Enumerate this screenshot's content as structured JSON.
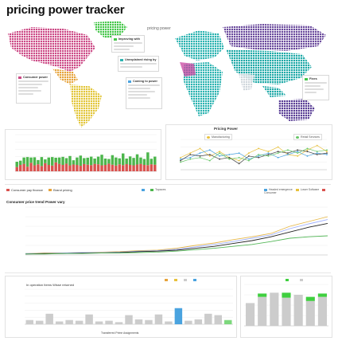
{
  "page": {
    "title": "pricing power tracker"
  },
  "map": {
    "label": "pricing power",
    "legend_na": "Consumer power",
    "legend_pacific": "Improving with",
    "legend_mid": "Unexplained rising by",
    "legend_sa": "Coming to power",
    "legend_asia": "Fixes",
    "colors": {
      "na": "#cc4a86",
      "greenland": "#45c64a",
      "europe": "#2bb3b0",
      "russia": "#6a4a9c",
      "asia": "#1fa9a7",
      "sa": "#e2c63a",
      "mexico": "#e6a33a",
      "australia": "#5a3f96",
      "ocean": "#ffffff"
    }
  },
  "pricing_panel": {
    "title": "Pricing Power",
    "tag1": "Manufacturing",
    "tag2": "Retail Services"
  },
  "legend_bar": {
    "left1": "Consumer pay finance",
    "left2": "Brand pricing",
    "mid1": "",
    "mid2": "Topaces",
    "right1": "Headed emergence",
    "right2": "Lower Software",
    "right3": "Consumer"
  },
  "line_chart": {
    "title": "Consumer price trend Power vary"
  },
  "bottom": {
    "title": "In operation Items Wisse returned",
    "xlabel": "Transferred Prime Assignments"
  },
  "chart_data": [
    {
      "type": "bar",
      "title": "",
      "stacked": true,
      "ylim": [
        0,
        100
      ],
      "series": [
        {
          "name": "",
          "color": "#d9534f",
          "values": [
            20,
            30,
            35,
            22,
            40,
            28,
            33,
            25,
            38,
            30,
            27,
            42,
            35,
            30,
            36,
            28,
            32,
            30,
            26,
            34,
            31,
            29,
            35,
            33,
            28,
            30,
            36,
            31,
            27,
            33,
            29,
            34,
            30,
            28,
            32,
            35,
            30,
            29,
            33,
            31
          ]
        },
        {
          "name": "",
          "color": "#4cb64c",
          "values": [
            25,
            20,
            30,
            45,
            25,
            38,
            20,
            42,
            18,
            35,
            40,
            22,
            30,
            38,
            26,
            44,
            20,
            35,
            48,
            28,
            33,
            40,
            25,
            36,
            50,
            30,
            22,
            45,
            38,
            28,
            55,
            26,
            40,
            35,
            48,
            30,
            28,
            60,
            26,
            38
          ]
        }
      ]
    },
    {
      "type": "line",
      "title": "Pricing Power",
      "ylim": [
        0,
        100
      ],
      "series": [
        {
          "name": "",
          "color": "#e8c13c",
          "values": [
            40,
            55,
            70,
            45,
            60,
            40,
            30,
            55,
            70,
            60,
            75,
            50,
            45,
            65,
            80,
            60
          ]
        },
        {
          "name": "",
          "color": "#4aa3df",
          "values": [
            35,
            40,
            55,
            65,
            45,
            50,
            55,
            35,
            45,
            55,
            40,
            50,
            60,
            45,
            55,
            50
          ]
        },
        {
          "name": "",
          "color": "#444444",
          "values": [
            30,
            50,
            45,
            50,
            35,
            40,
            20,
            45,
            40,
            50,
            60,
            55,
            65,
            60,
            50,
            55
          ]
        },
        {
          "name": "",
          "color": "#67c567",
          "values": [
            25,
            35,
            40,
            30,
            55,
            35,
            40,
            30,
            50,
            45,
            55,
            65,
            55,
            70,
            60,
            65
          ]
        }
      ]
    },
    {
      "type": "line",
      "title": "Consumer price trend Power vary",
      "ylim": [
        0,
        100
      ],
      "series": [
        {
          "name": "",
          "color": "#e6b84a",
          "values": [
            3,
            4,
            4,
            5,
            6,
            7,
            9,
            10,
            14,
            20,
            25,
            32,
            38,
            45,
            60,
            70,
            80
          ]
        },
        {
          "name": "",
          "color": "#9fb0ff",
          "values": [
            3,
            3,
            4,
            5,
            5,
            6,
            8,
            9,
            12,
            17,
            22,
            28,
            35,
            42,
            55,
            65,
            74
          ]
        },
        {
          "name": "",
          "color": "#222222",
          "values": [
            2,
            3,
            3,
            4,
            4,
            5,
            7,
            8,
            10,
            14,
            18,
            24,
            30,
            38,
            48,
            58,
            66
          ]
        },
        {
          "name": "",
          "color": "#56b85a",
          "values": [
            2,
            2,
            3,
            3,
            4,
            4,
            5,
            6,
            8,
            11,
            14,
            18,
            22,
            28,
            35,
            38,
            40
          ]
        }
      ]
    },
    {
      "type": "bar",
      "title": "In operation Items Wisse returned",
      "xlabel": "Transferred Prime Assignments",
      "ylim": [
        0,
        100
      ],
      "values": [
        12,
        10,
        30,
        8,
        12,
        10,
        28,
        8,
        10,
        6,
        26,
        14,
        12,
        28,
        8,
        46,
        10,
        14,
        30,
        26,
        12
      ],
      "colors": [
        "#cccccc",
        "#cccccc",
        "#cccccc",
        "#cccccc",
        "#cccccc",
        "#cccccc",
        "#cccccc",
        "#cccccc",
        "#cccccc",
        "#cccccc",
        "#cccccc",
        "#cccccc",
        "#cccccc",
        "#cccccc",
        "#cccccc",
        "#cccccc",
        "#cccccc",
        "#cccccc",
        "#cccccc",
        "#cccccc",
        "#7dd87d"
      ]
    },
    {
      "type": "bar",
      "title": "",
      "stacked": true,
      "ylim": [
        0,
        100
      ],
      "series": [
        {
          "name": "",
          "color": "#cccccc",
          "values": [
            55,
            70,
            80,
            68,
            75,
            60,
            70
          ]
        },
        {
          "name": "",
          "color": "#3fcf3f",
          "values": [
            0,
            8,
            0,
            12,
            0,
            10,
            8
          ]
        }
      ]
    }
  ]
}
